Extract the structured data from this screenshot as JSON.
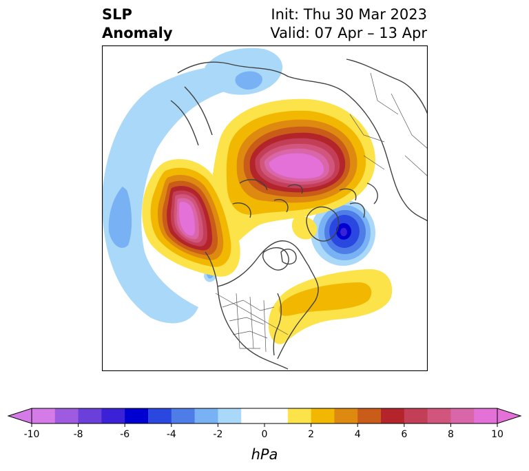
{
  "title": {
    "left_line1": "SLP",
    "left_line2": "Anomaly",
    "right_line1": "Init: Thu 30 Mar 2023",
    "right_line2": "Valid: 07 Apr – 13 Apr"
  },
  "colorbar": {
    "unit": "hPa",
    "tick_labels": [
      "-10",
      "-8",
      "-6",
      "-4",
      "-2",
      "0",
      "2",
      "4",
      "6",
      "8",
      "10"
    ],
    "ticks": [
      -10,
      -8,
      -6,
      -4,
      -2,
      0,
      2,
      4,
      6,
      8,
      10
    ],
    "extend": "both",
    "bins": [
      {
        "from": -10,
        "to": -9,
        "color": "#d47be8"
      },
      {
        "from": -9,
        "to": -8,
        "color": "#9f5be0"
      },
      {
        "from": -8,
        "to": -7,
        "color": "#6b3fd9"
      },
      {
        "from": -7,
        "to": -6,
        "color": "#3b22d6"
      },
      {
        "from": -6,
        "to": -5,
        "color": "#0000d0"
      },
      {
        "from": -5,
        "to": -4,
        "color": "#2a47df"
      },
      {
        "from": -4,
        "to": -3,
        "color": "#4f7de8"
      },
      {
        "from": -3,
        "to": -2,
        "color": "#78b1f4"
      },
      {
        "from": -2,
        "to": -1,
        "color": "#aad8f8"
      },
      {
        "from": -1,
        "to": 1,
        "color": "#ffffff"
      },
      {
        "from": 1,
        "to": 2,
        "color": "#fde34a"
      },
      {
        "from": 2,
        "to": 3,
        "color": "#f2b700"
      },
      {
        "from": 3,
        "to": 4,
        "color": "#de8a10"
      },
      {
        "from": 4,
        "to": 5,
        "color": "#c95c18"
      },
      {
        "from": 5,
        "to": 6,
        "color": "#b3242b"
      },
      {
        "from": 6,
        "to": 7,
        "color": "#c33f57"
      },
      {
        "from": 7,
        "to": 8,
        "color": "#d1557c"
      },
      {
        "from": 8,
        "to": 9,
        "color": "#d966a8"
      },
      {
        "from": 9,
        "to": 10,
        "color": "#e471d8"
      }
    ],
    "under_color": "#d47be8",
    "over_color": "#e471d8"
  },
  "map": {
    "projection": "north-polar-stereographic",
    "features": [
      {
        "name": "arctic-positive-anomaly",
        "peak_hpa": 10
      },
      {
        "name": "north-pacific-positive-anomaly",
        "peak_hpa": 10
      },
      {
        "name": "north-atlantic-negative-anomaly",
        "peak_hpa": -7
      },
      {
        "name": "western-atlantic-positive-anomaly",
        "peak_hpa": 3
      },
      {
        "name": "pacific-negative-arc",
        "peak_hpa": -3
      },
      {
        "name": "siberia-negative-anomaly",
        "peak_hpa": -3
      }
    ]
  }
}
